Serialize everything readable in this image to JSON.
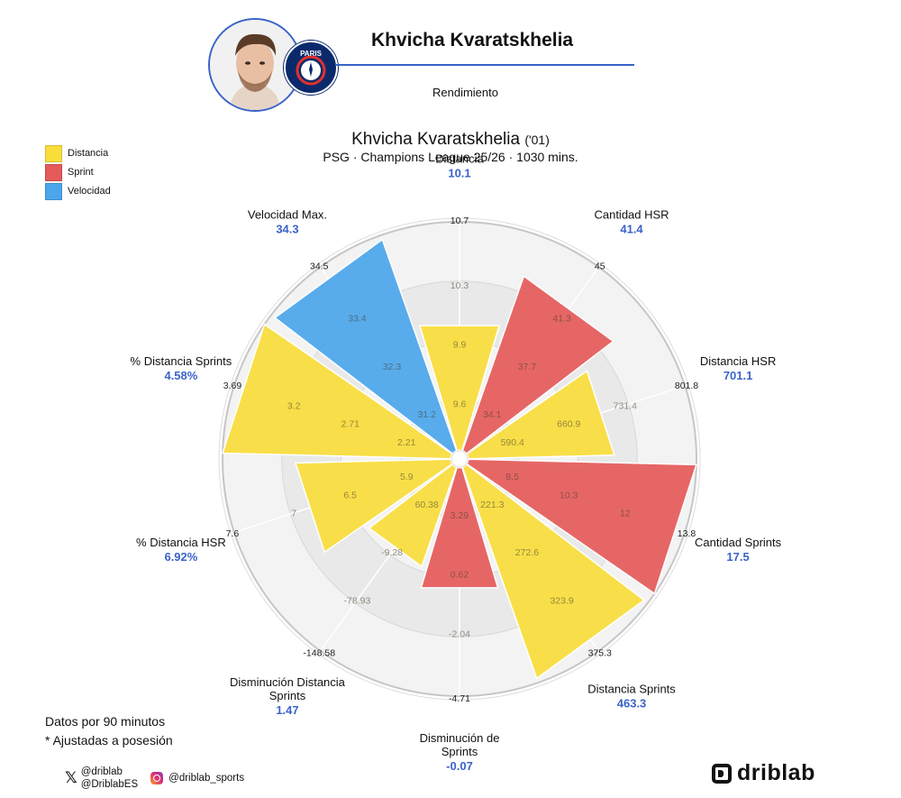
{
  "header": {
    "player_name": "Khvicha Kvaratskhelia",
    "subtitle": "Rendimiento",
    "badge_text": "PARIS"
  },
  "colors": {
    "distancia": "#f9dd3b",
    "sprint": "#e55a5a",
    "velocidad": "#4ba6ec",
    "value_blue": "#3a63c8",
    "accent": "#3a63c8"
  },
  "legend": [
    {
      "label": "Distancia",
      "color": "#f9dd3b"
    },
    {
      "label": "Sprint",
      "color": "#e55a5a"
    },
    {
      "label": "Velocidad",
      "color": "#4ba6ec"
    }
  ],
  "notes": {
    "line1": "Datos por 90 minutos",
    "line2": "* Ajustadas a posesión"
  },
  "social": {
    "x_handle1": "@driblab",
    "x_handle2": "@DriblabES",
    "instagram": "@driblab_sports"
  },
  "brand": {
    "name": "driblab"
  },
  "chart_data": {
    "type": "polar-bar",
    "title": "Khvicha Kvaratskhelia",
    "title_suffix": "('01)",
    "subtitle": "PSG · Champions League 25/26 · 1030 mins.",
    "categories": [
      {
        "label": "Distancia",
        "value": "10.1",
        "group": "Distancia",
        "fill": 0.57,
        "ticks": [
          "9.6",
          "9.9",
          "10.3",
          "10.7"
        ]
      },
      {
        "label": "Cantidad HSR",
        "value": "41.4",
        "group": "Sprint",
        "fill": 0.81,
        "ticks": [
          "34.1",
          "37.7",
          "41.3",
          "45"
        ]
      },
      {
        "label": "Distancia HSR",
        "value": "701.1",
        "group": "Distancia",
        "fill": 0.64,
        "ticks": [
          "590.4",
          "660.9",
          "731.4",
          "801.8"
        ]
      },
      {
        "label": "Cantidad Sprints",
        "value": "17.5",
        "group": "Sprint",
        "fill": 1.0,
        "ticks": [
          "8.5",
          "10.3",
          "12",
          "13.8"
        ]
      },
      {
        "label": "Distancia Sprints",
        "value": "463.3",
        "group": "Distancia",
        "fill": 0.98,
        "ticks": [
          "221.3",
          "272.6",
          "323.9",
          "375.3"
        ]
      },
      {
        "label": "Disminución de Sprints",
        "value": "-0.07",
        "group": "Sprint",
        "fill": 0.55,
        "ticks": [
          "3.29",
          "0.62",
          "-2.04",
          "-4.71"
        ]
      },
      {
        "label": "Disminución Distancia Sprints",
        "value": "1.47",
        "group": "Distancia",
        "fill": 0.46,
        "ticks": [
          "60.38",
          "-9.28",
          "-78.93",
          "-148.58"
        ]
      },
      {
        "label": "% Distancia HSR",
        "value": "6.92%",
        "group": "Distancia",
        "fill": 0.68,
        "ticks": [
          "5.9",
          "6.5",
          "7",
          "7.6"
        ]
      },
      {
        "label": "% Distancia Sprints",
        "value": "4.58%",
        "group": "Distancia",
        "fill": 1.0,
        "ticks": [
          "2.21",
          "2.71",
          "3.2",
          "3.69"
        ]
      },
      {
        "label": "Velocidad Max.",
        "value": "34.3",
        "group": "Velocidad",
        "fill": 0.98,
        "ticks": [
          "31.2",
          "32.3",
          "33.4",
          "34.5"
        ]
      }
    ]
  }
}
